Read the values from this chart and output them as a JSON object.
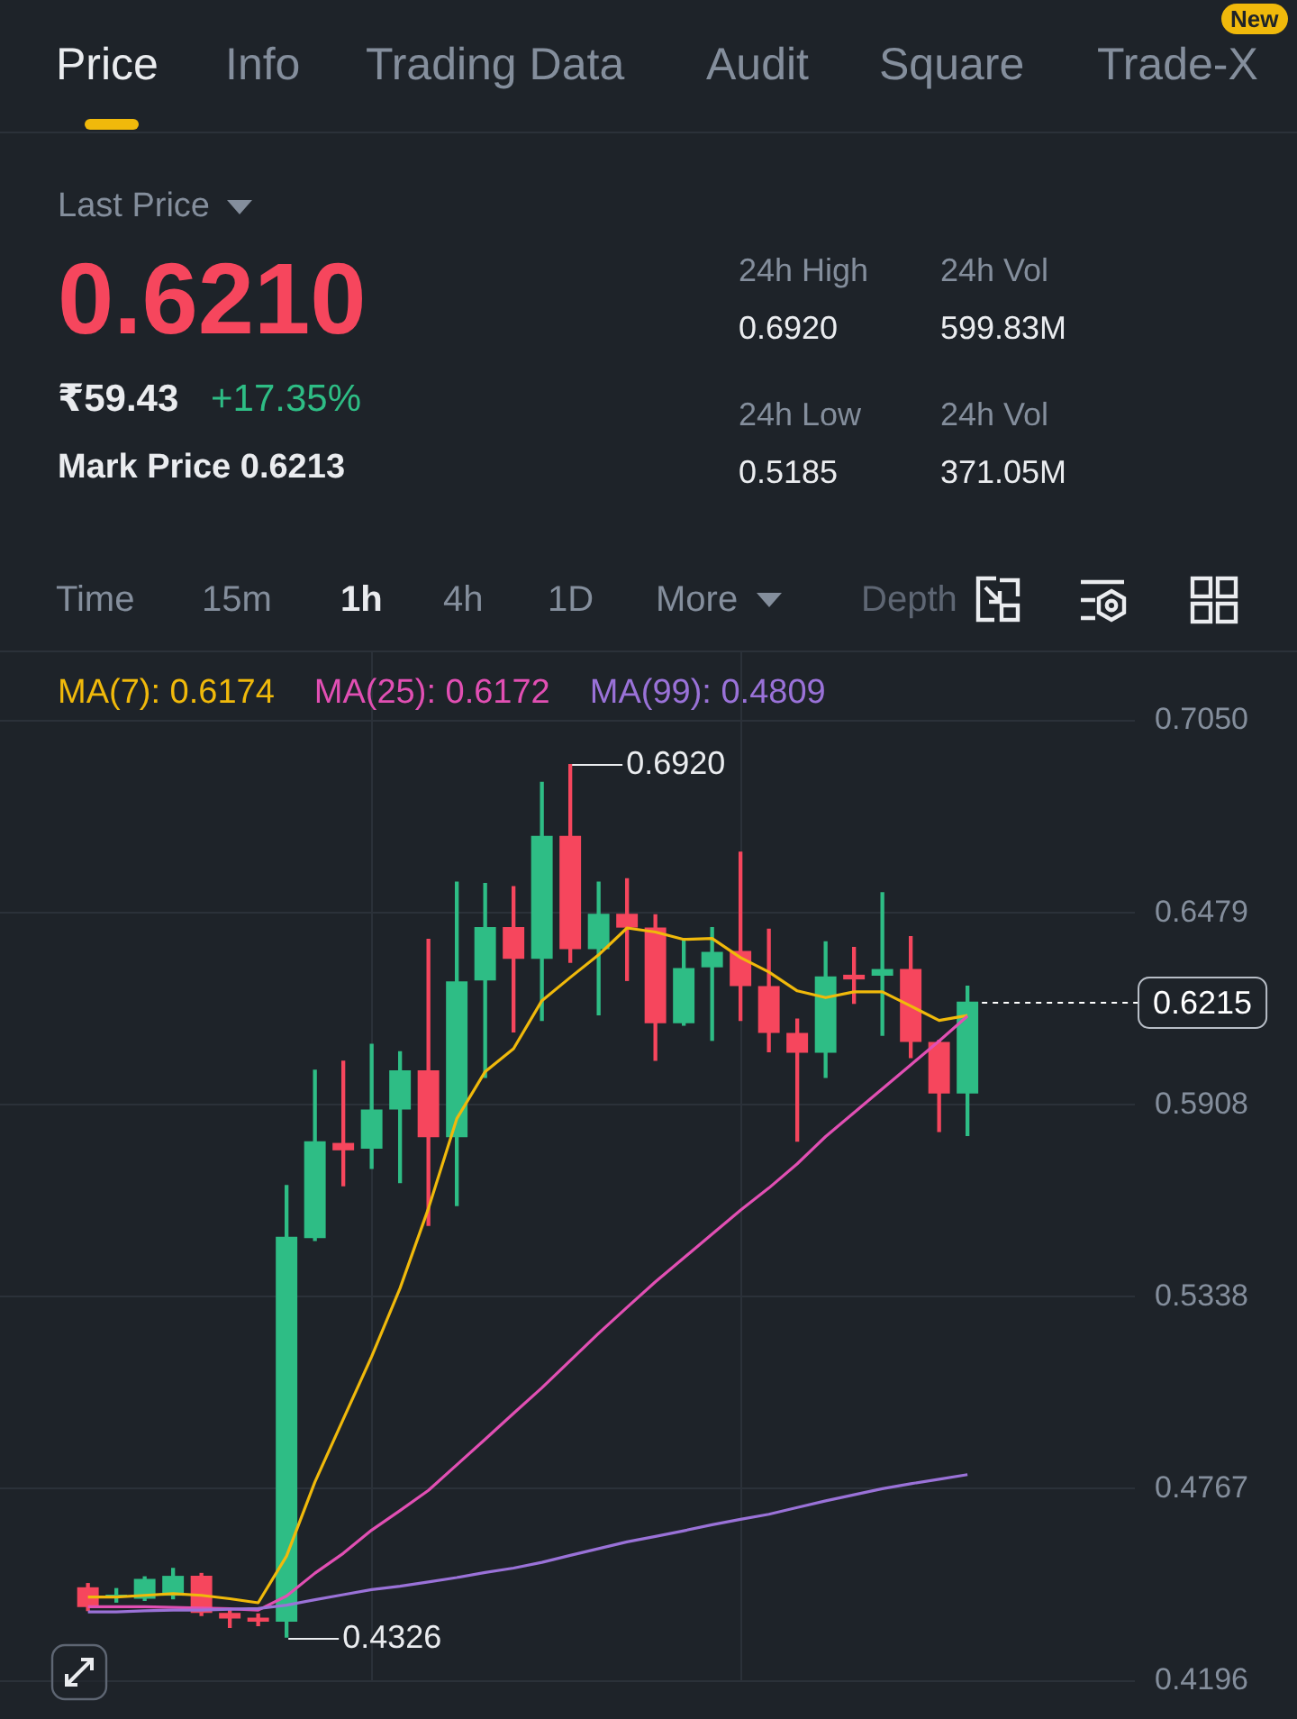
{
  "chart_data": [
    {
      "type": "other",
      "annotations": [
        "Price",
        "Info",
        "Trading Data",
        "Audit",
        "Square",
        "Trade-X",
        "New",
        "Last Price",
        "0.6210",
        "₹59.43",
        "+17.35%",
        "Mark Price 0.6213",
        "24h High",
        "0.6920",
        "24h Vol",
        "599.83M",
        "24h Low",
        "0.5185",
        "24h Vol",
        "371.05M",
        "Time",
        "15m",
        "1h",
        "4h",
        "1D",
        "More",
        "Depth"
      ]
    },
    {
      "type": "candlestick",
      "categories": [
        null,
        null,
        null,
        null,
        null,
        null,
        null,
        null,
        null,
        null,
        null,
        null,
        null,
        null,
        null,
        null,
        null,
        null,
        null,
        null,
        null,
        null,
        null,
        null,
        null,
        null,
        null,
        null,
        null,
        null,
        null,
        null
      ],
      "ohlc": [
        [
          0.4474,
          0.4485,
          0.4405,
          0.4415
        ],
        [
          0.4447,
          0.447,
          0.443,
          0.4452
        ],
        [
          0.444,
          0.4505,
          0.4435,
          0.4499
        ],
        [
          0.4449,
          0.453,
          0.444,
          0.4508
        ],
        [
          0.4508,
          0.4515,
          0.439,
          0.4398
        ],
        [
          0.4398,
          0.4405,
          0.4355,
          0.4381
        ],
        [
          0.4384,
          0.4395,
          0.436,
          0.4372
        ],
        [
          0.4372,
          0.5668,
          0.4326,
          0.5516
        ],
        [
          0.5512,
          0.6011,
          0.5505,
          0.58
        ],
        [
          0.5795,
          0.6038,
          0.5668,
          0.5773
        ],
        [
          0.5778,
          0.6088,
          0.5719,
          0.5894
        ],
        [
          0.5894,
          0.6066,
          0.5677,
          0.6011
        ],
        [
          0.6011,
          0.64,
          0.555,
          0.5812
        ],
        [
          0.5812,
          0.657,
          0.5609,
          0.6275
        ],
        [
          0.6278,
          0.6566,
          0.599,
          0.6437
        ],
        [
          0.6437,
          0.6557,
          0.6125,
          0.6342
        ],
        [
          0.6342,
          0.6867,
          0.6159,
          0.6708
        ],
        [
          0.6708,
          0.692,
          0.6332,
          0.6371
        ],
        [
          0.6371,
          0.657,
          0.6176,
          0.6476
        ],
        [
          0.6476,
          0.658,
          0.6278,
          0.6435
        ],
        [
          0.6435,
          0.6473,
          0.6041,
          0.6151
        ],
        [
          0.6151,
          0.6397,
          0.6145,
          0.6315
        ],
        [
          0.6317,
          0.6435,
          0.61,
          0.6363
        ],
        [
          0.6366,
          0.6659,
          0.6159,
          0.6261
        ],
        [
          0.6261,
          0.643,
          0.6066,
          0.6122
        ],
        [
          0.6122,
          0.6163,
          0.58,
          0.6063
        ],
        [
          0.6063,
          0.6393,
          0.599,
          0.629
        ],
        [
          0.6295,
          0.6376,
          0.621,
          0.6281
        ],
        [
          0.6292,
          0.6539,
          0.6115,
          0.6312
        ],
        [
          0.6312,
          0.6408,
          0.6049,
          0.6095
        ],
        [
          0.6095,
          0.61,
          0.5829,
          0.5942
        ],
        [
          0.5942,
          0.6261,
          0.5817,
          0.6215
        ]
      ],
      "colors": [
        "#f6465d",
        "#2ebd85",
        "#2ebd85",
        "#2ebd85",
        "#f6465d",
        "#f6465d",
        "#f6465d",
        "#2ebd85",
        "#2ebd85",
        "#f6465d",
        "#2ebd85",
        "#2ebd85",
        "#f6465d",
        "#2ebd85",
        "#2ebd85",
        "#f6465d",
        "#2ebd85",
        "#f6465d",
        "#2ebd85",
        "#f6465d",
        "#f6465d",
        "#2ebd85",
        "#2ebd85",
        "#f6465d",
        "#f6465d",
        "#f6465d",
        "#2ebd85",
        "#f6465d",
        "#2ebd85",
        "#f6465d",
        "#f6465d",
        "#2ebd85"
      ],
      "series": [
        {
          "type": "line",
          "name": "MA(7): 0.6174",
          "color": "#f0b90b",
          "values": [
            0.4445,
            0.4445,
            0.445,
            0.4455,
            0.445,
            0.444,
            0.4428,
            0.4567,
            0.4787,
            0.4974,
            0.516,
            0.5363,
            0.56,
            0.5867,
            0.6007,
            0.6075,
            0.6218,
            0.6287,
            0.6354,
            0.6434,
            0.6422,
            0.64,
            0.6403,
            0.6346,
            0.6303,
            0.6247,
            0.6227,
            0.6244,
            0.6244,
            0.6202,
            0.6159,
            0.6174
          ]
        },
        {
          "type": "line",
          "name": "MA(25): 0.6172",
          "color": "#e14fb3",
          "values": [
            0.4416,
            0.4416,
            0.4416,
            0.4414,
            0.4412,
            0.441,
            0.4406,
            0.4448,
            0.4516,
            0.4575,
            0.4644,
            0.4702,
            0.4762,
            0.4838,
            0.4914,
            0.4991,
            0.5067,
            0.5148,
            0.5229,
            0.5306,
            0.5382,
            0.5453,
            0.5524,
            0.5595,
            0.5661,
            0.5733,
            0.5814,
            0.5885,
            0.5956,
            0.6027,
            0.6098,
            0.6172
          ]
        },
        {
          "type": "line",
          "name": "MA(99): 0.4809",
          "color": "#9a72d8",
          "values": [
            0.4401,
            0.4401,
            0.4404,
            0.4406,
            0.4406,
            0.4409,
            0.4411,
            0.4421,
            0.4437,
            0.4452,
            0.4467,
            0.4477,
            0.449,
            0.4503,
            0.4518,
            0.4531,
            0.4548,
            0.4569,
            0.4589,
            0.4609,
            0.4625,
            0.4642,
            0.466,
            0.4676,
            0.4691,
            0.4711,
            0.4731,
            0.4749,
            0.4767,
            0.4782,
            0.4795,
            0.4809
          ]
        }
      ],
      "ylim": [
        0.4196,
        0.705
      ],
      "yticks": [
        {
          "value": 0.705,
          "label": "0.7050"
        },
        0.6479,
        0.5908,
        0.5338,
        0.4767,
        0.4196
      ],
      "tick_labels": "y",
      "grid": "y",
      "legend": "top",
      "ref_lines": [
        {
          "axis": "y",
          "value": 0.6215,
          "label": "0.6215",
          "color": "#ffffff",
          "line_style": "dashed"
        }
      ],
      "annotations": [
        "0.6920",
        "0.4326"
      ]
    }
  ]
}
